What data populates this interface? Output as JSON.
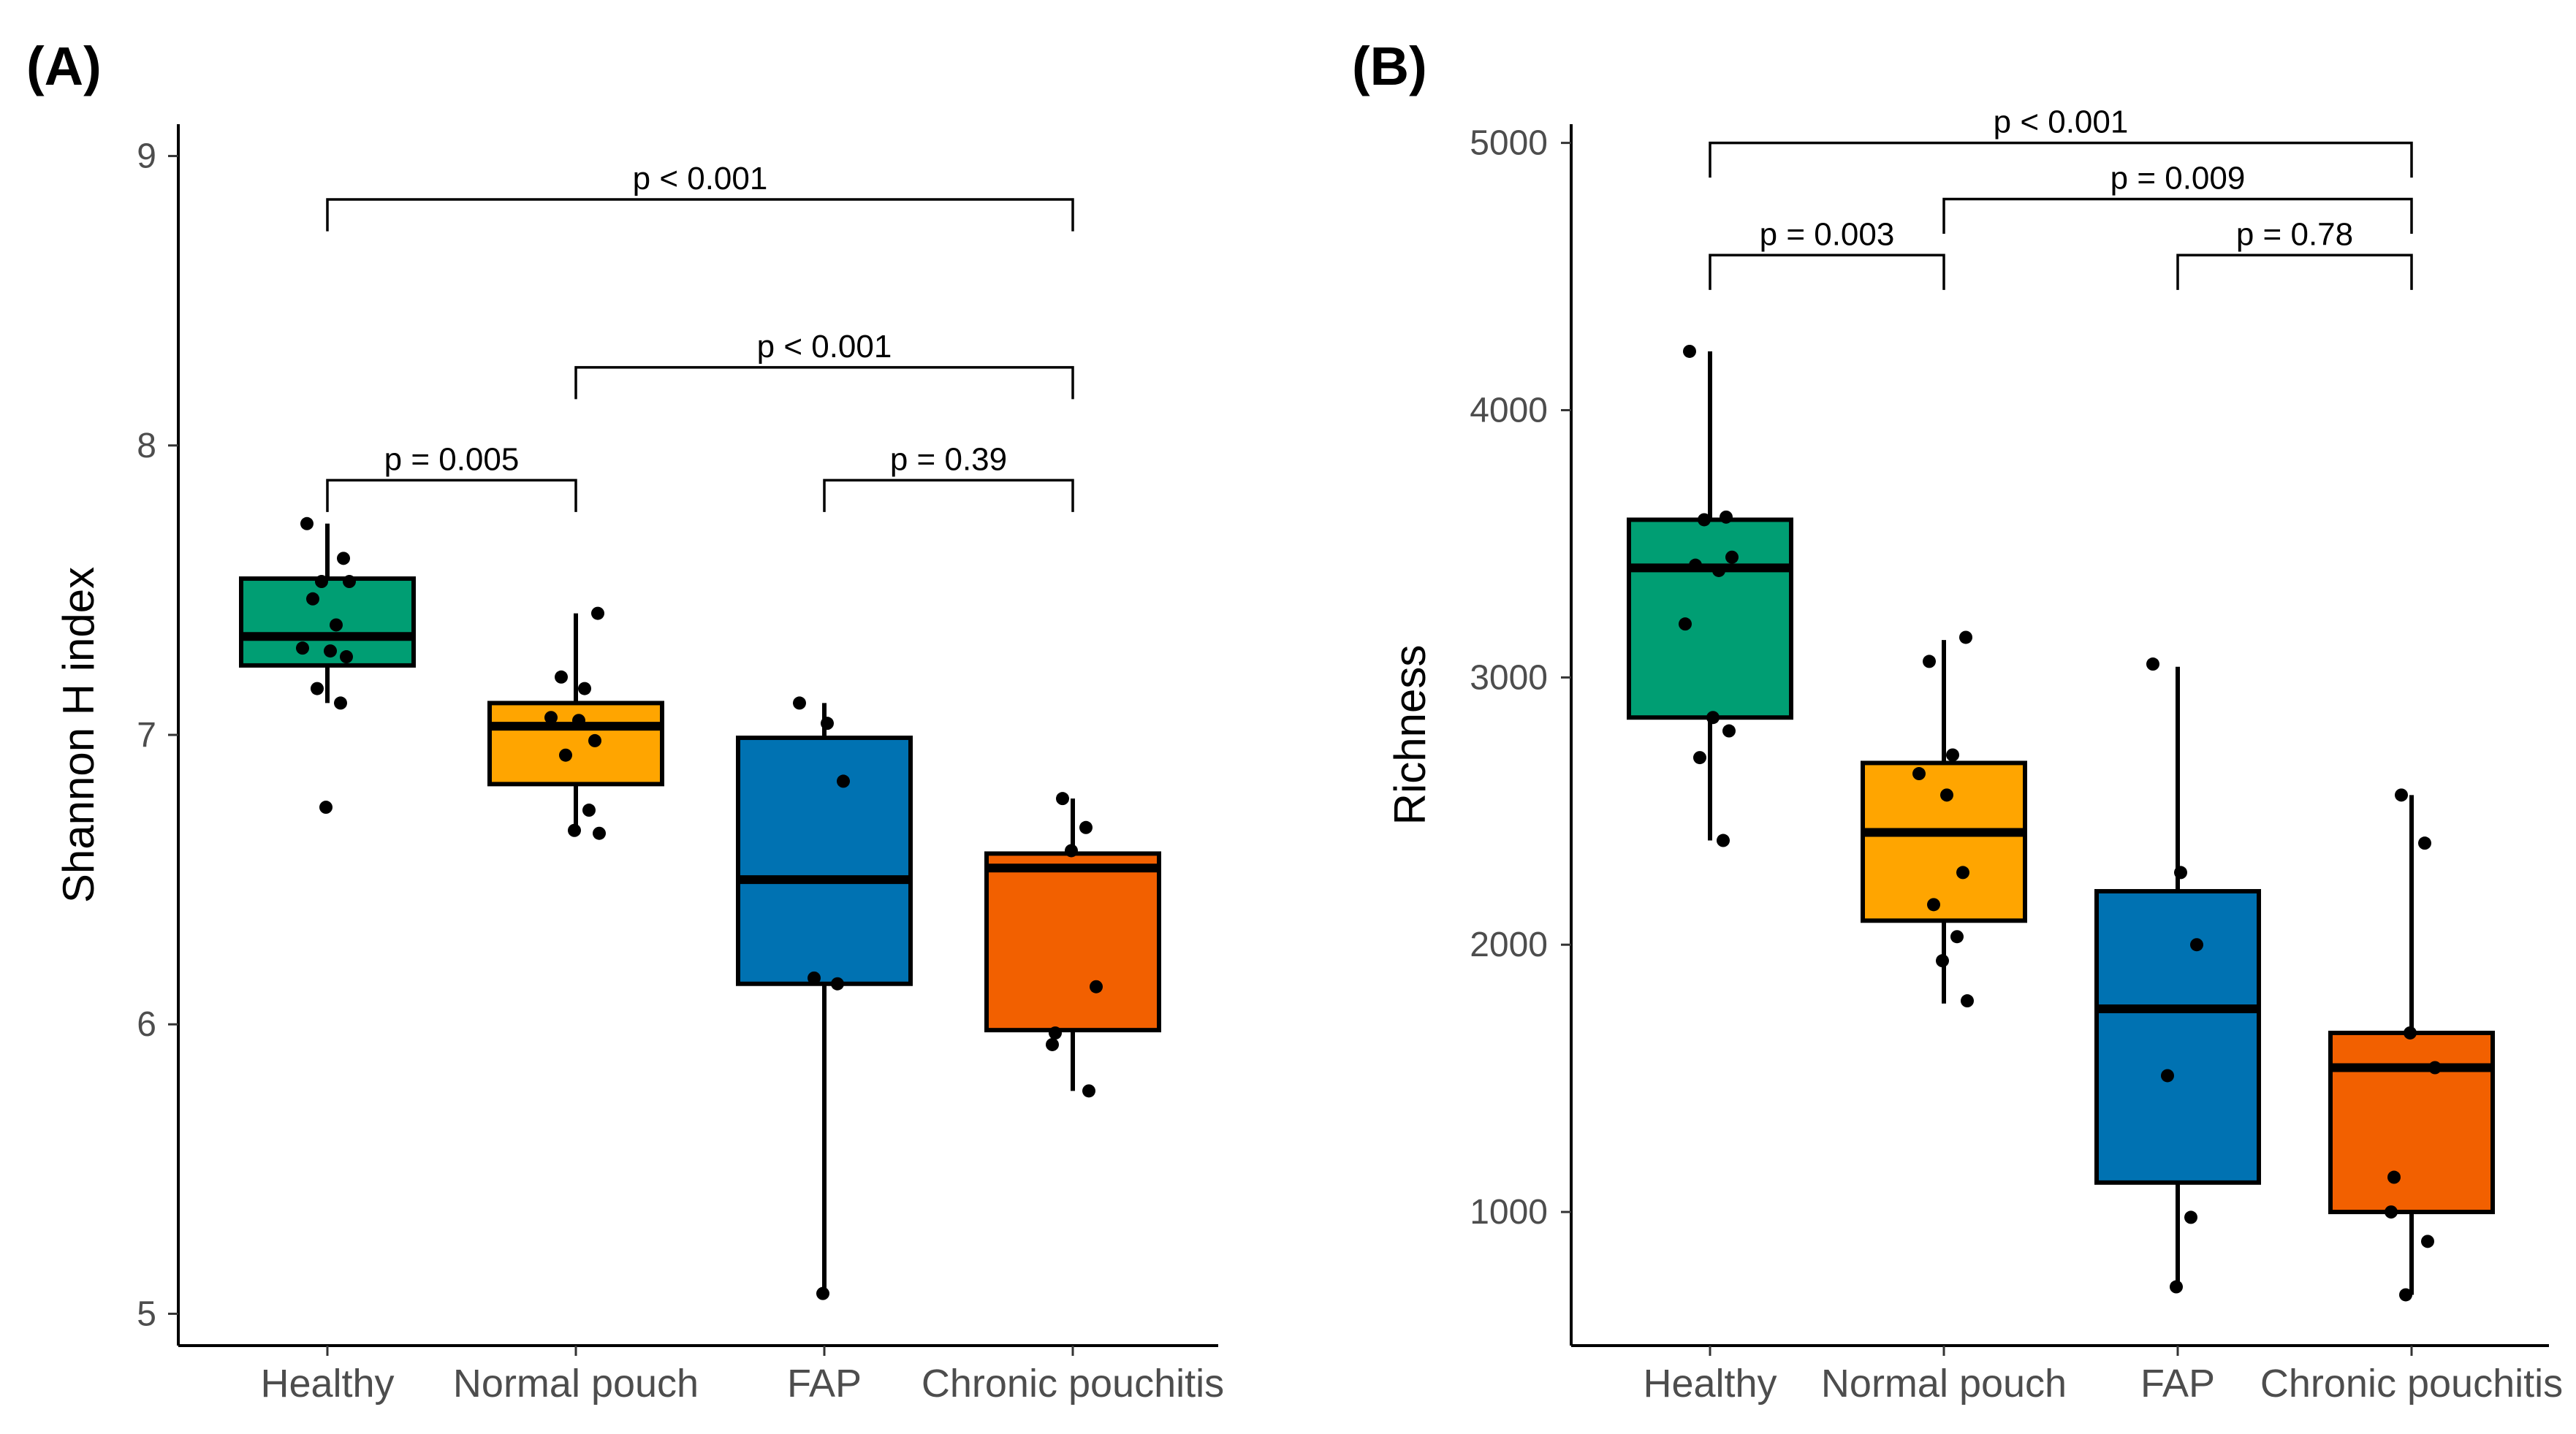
{
  "chart_data": [
    {
      "panel_label": "(A)",
      "type": "box",
      "ylabel": "Shannon H index",
      "ylim": [
        4.89,
        9.11
      ],
      "yticks": [
        5,
        6,
        7,
        8,
        9
      ],
      "categories": [
        "Healthy",
        "Normal pouch",
        "FAP",
        "Chronic pouchitis"
      ],
      "colors": [
        "#009E73",
        "#FFA500",
        "#0072B2",
        "#F26000"
      ],
      "boxes": [
        {
          "q1": 7.24,
          "median": 7.34,
          "q3": 7.54,
          "lower_whisker": 7.11,
          "upper_whisker": 7.73
        },
        {
          "q1": 6.83,
          "median": 7.03,
          "q3": 7.11,
          "lower_whisker": 6.66,
          "upper_whisker": 7.42
        },
        {
          "q1": 6.14,
          "median": 6.5,
          "q3": 6.99,
          "lower_whisker": 5.07,
          "upper_whisker": 7.11
        },
        {
          "q1": 5.98,
          "median": 6.54,
          "q3": 6.59,
          "lower_whisker": 5.77,
          "upper_whisker": 6.78
        }
      ],
      "points": [
        [
          7.73,
          7.61,
          7.53,
          7.53,
          7.47,
          7.38,
          7.3,
          7.29,
          7.27,
          7.16,
          7.11,
          6.75
        ],
        [
          7.42,
          7.2,
          7.16,
          7.06,
          7.05,
          6.98,
          6.93,
          6.74,
          6.67,
          6.66
        ],
        [
          7.11,
          7.04,
          6.84,
          6.16,
          6.14,
          5.07
        ],
        [
          6.78,
          6.68,
          6.6,
          6.13,
          5.97,
          5.93,
          5.77
        ]
      ],
      "comparisons": [
        {
          "from": 0,
          "to": 1,
          "label": "p = 0.005",
          "y": 7.88,
          "tip": 7.77
        },
        {
          "from": 2,
          "to": 3,
          "label": "p = 0.39",
          "y": 7.88,
          "tip": 7.77
        },
        {
          "from": 1,
          "to": 3,
          "label": "p < 0.001",
          "y": 8.27,
          "tip": 8.16
        },
        {
          "from": 0,
          "to": 3,
          "label": "p < 0.001",
          "y": 8.85,
          "tip": 8.74
        }
      ]
    },
    {
      "panel_label": "(B)",
      "type": "box",
      "ylabel": "Richness",
      "ylim": [
        500,
        5070
      ],
      "yticks": [
        1000,
        2000,
        3000,
        4000,
        5000
      ],
      "categories": [
        "Healthy",
        "Normal pouch",
        "FAP",
        "Chronic pouchitis"
      ],
      "colors": [
        "#009E73",
        "#FFA500",
        "#0072B2",
        "#F26000"
      ],
      "boxes": [
        {
          "q1": 2850,
          "median": 3410,
          "q3": 3590,
          "lower_whisker": 2390,
          "upper_whisker": 4220
        },
        {
          "q1": 2090,
          "median": 2420,
          "q3": 2680,
          "lower_whisker": 1780,
          "upper_whisker": 3140
        },
        {
          "q1": 1110,
          "median": 1760,
          "q3": 2200,
          "lower_whisker": 720,
          "upper_whisker": 3040
        },
        {
          "q1": 1000,
          "median": 1540,
          "q3": 1670,
          "lower_whisker": 690,
          "upper_whisker": 2560
        }
      ],
      "points": [
        [
          4220,
          3600,
          3590,
          3450,
          3420,
          3400,
          3200,
          2850,
          2800,
          2700,
          2390
        ],
        [
          3150,
          3060,
          2710,
          2640,
          2560,
          2270,
          2150,
          2030,
          1940,
          1790
        ],
        [
          3050,
          2270,
          2000,
          1510,
          980,
          720
        ],
        [
          2560,
          2380,
          1670,
          1540,
          1130,
          1000,
          890,
          690
        ]
      ],
      "comparisons": [
        {
          "from": 0,
          "to": 1,
          "label": "p = 0.003",
          "y": 4580,
          "tip": 4450
        },
        {
          "from": 2,
          "to": 3,
          "label": "p = 0.78",
          "y": 4580,
          "tip": 4450
        },
        {
          "from": 1,
          "to": 3,
          "label": "p = 0.009",
          "y": 4790,
          "tip": 4660
        },
        {
          "from": 0,
          "to": 3,
          "label": "p < 0.001",
          "y": 5000,
          "tip": 4870
        }
      ]
    }
  ]
}
